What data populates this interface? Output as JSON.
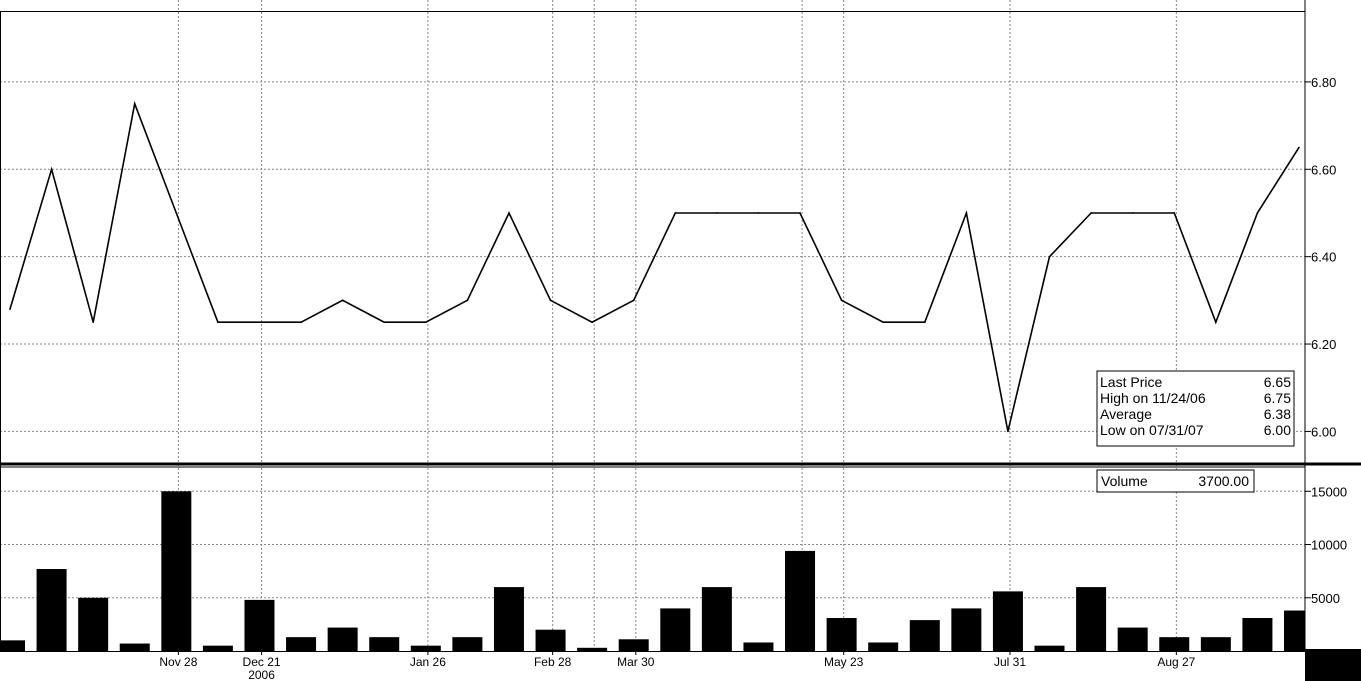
{
  "chart_data": [
    {
      "type": "line",
      "series": [
        {
          "values": [
            6.28,
            6.6,
            6.25,
            6.75,
            6.5,
            6.25,
            6.25,
            6.25,
            6.3,
            6.25,
            6.25,
            6.3,
            6.5,
            6.3,
            6.25,
            6.3,
            6.5,
            6.5,
            6.5,
            6.5,
            6.3,
            6.25,
            6.25,
            6.5,
            6.0,
            6.4,
            6.5,
            6.5,
            6.5,
            6.25,
            6.5,
            6.65
          ]
        }
      ],
      "ylim": [
        5.93,
        6.96
      ],
      "yticks": [
        "6.80",
        "6.60",
        "6.40",
        "6.20",
        "6.00"
      ],
      "grid": true,
      "info_box": {
        "rows": [
          {
            "label": "Last Price",
            "value": "6.65"
          },
          {
            "label": "High on 11/24/06",
            "value": "6.75"
          },
          {
            "label": "Average",
            "value": "6.38"
          },
          {
            "label": "Low on 07/31/07",
            "value": "6.00"
          }
        ]
      }
    },
    {
      "type": "bar",
      "series": [
        {
          "values": [
            1000,
            7700,
            5000,
            700,
            15000,
            500,
            4800,
            1300,
            2200,
            1300,
            500,
            1300,
            6000,
            2000,
            300,
            1100,
            4000,
            6000,
            800,
            9400,
            3100,
            800,
            2900,
            4000,
            5600,
            500,
            6000,
            2200,
            1300,
            1300,
            3100,
            3800
          ]
        }
      ],
      "ylim": [
        0,
        17000
      ],
      "yticks": [
        "15000",
        "10000",
        "5000"
      ],
      "grid": true,
      "volume_label": "Volume",
      "volume_value": "3700.00"
    }
  ],
  "x_axis": {
    "ticks": [
      "Nov 28",
      "Dec 21",
      "Jan 26",
      "Feb 28",
      "Mar 30",
      "May 23",
      "Jul 31",
      "Aug 27"
    ],
    "year_label": "2006",
    "extra_gridline_count": 2
  }
}
